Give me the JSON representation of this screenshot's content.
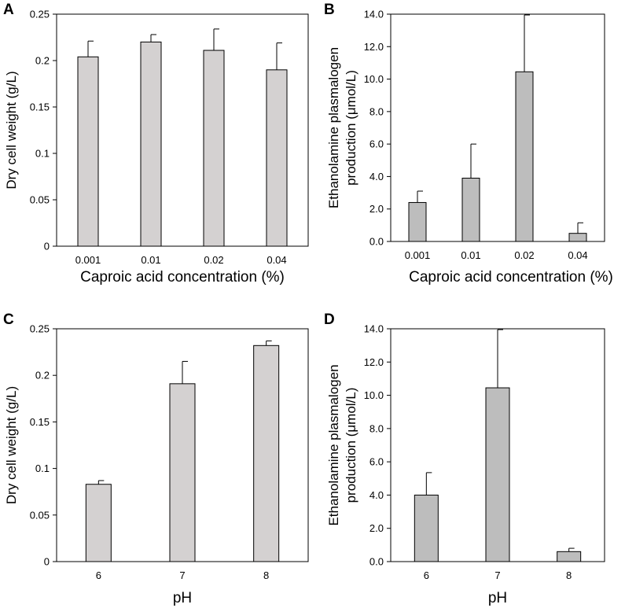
{
  "chart_data": [
    {
      "panel": "A",
      "type": "bar",
      "categories": [
        "0.001",
        "0.01",
        "0.02",
        "0.04"
      ],
      "values": [
        0.204,
        0.22,
        0.211,
        0.19
      ],
      "errors": [
        0.017,
        0.008,
        0.023,
        0.029
      ],
      "xlabel": "Caproic acid concentration (%)",
      "ylabel": [
        "Dry cell weight (g/L)"
      ],
      "ylim": [
        0,
        0.25
      ],
      "yticks": [
        "0",
        "0.05",
        "0.1",
        "0.15",
        "0.2",
        "0.25"
      ],
      "bar_color": "#d4d1d1"
    },
    {
      "panel": "B",
      "type": "bar",
      "categories": [
        "0.001",
        "0.01",
        "0.02",
        "0.04"
      ],
      "values": [
        2.4,
        3.9,
        10.45,
        0.5
      ],
      "errors": [
        0.7,
        2.1,
        3.5,
        0.65
      ],
      "xlabel": "Caproic acid concentration (%)",
      "ylabel": [
        "Ethanolamine plasmalogen",
        "production (μmol/L)"
      ],
      "ylim": [
        0,
        14
      ],
      "yticks": [
        "0.0",
        "2.0",
        "4.0",
        "6.0",
        "8.0",
        "10.0",
        "12.0",
        "14.0"
      ],
      "bar_color": "#bdbdbd"
    },
    {
      "panel": "C",
      "type": "bar",
      "categories": [
        "6",
        "7",
        "8"
      ],
      "values": [
        0.083,
        0.191,
        0.232
      ],
      "errors": [
        0.004,
        0.024,
        0.005
      ],
      "xlabel": "pH",
      "ylabel": [
        "Dry cell weight (g/L)"
      ],
      "ylim": [
        0,
        0.25
      ],
      "yticks": [
        "0",
        "0.05",
        "0.1",
        "0.15",
        "0.2",
        "0.25"
      ],
      "bar_color": "#d4d1d1"
    },
    {
      "panel": "D",
      "type": "bar",
      "categories": [
        "6",
        "7",
        "8"
      ],
      "values": [
        4.0,
        10.45,
        0.6
      ],
      "errors": [
        1.35,
        3.5,
        0.2
      ],
      "xlabel": "pH",
      "ylabel": [
        "Ethanolamine plasmalogen",
        "production (μmol/L)"
      ],
      "ylim": [
        0,
        14
      ],
      "yticks": [
        "0.0",
        "2.0",
        "4.0",
        "6.0",
        "8.0",
        "10.0",
        "12.0",
        "14.0"
      ],
      "bar_color": "#bdbdbd"
    }
  ]
}
